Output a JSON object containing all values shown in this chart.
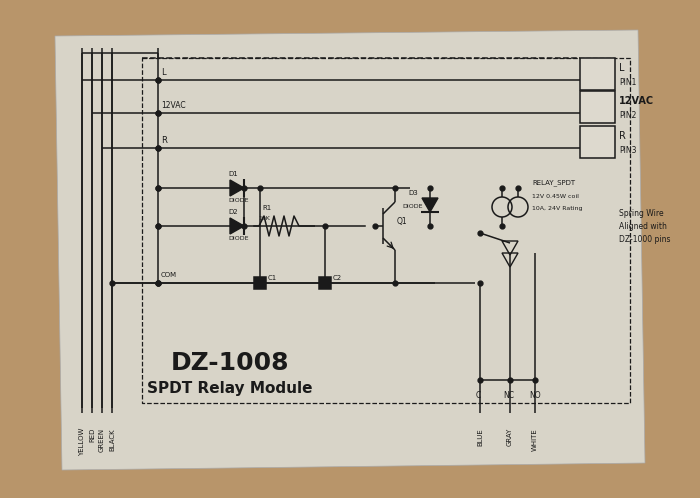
{
  "bg_color": "#b8956a",
  "paper_color": "#ddd9ce",
  "line_color": "#1a1a1a",
  "main_title": "DZ-1008",
  "sub_title": "SPDT Relay Module",
  "bottom_labels_left": [
    "YELLOW",
    "RED",
    "GREEN",
    "BLACK"
  ],
  "bottom_labels_right": [
    "BLUE",
    "GRAY",
    "WHITE"
  ],
  "bottom_node_labels": [
    "C",
    "NC",
    "NO"
  ],
  "pin_labels": [
    "L",
    "12VAC",
    "R"
  ],
  "pin_sublabels": [
    "PIN1",
    "PIN2",
    "PIN3"
  ],
  "spring_wire_text": [
    "Spring Wire",
    "Aligned with",
    "DZ-1000 pins"
  ]
}
